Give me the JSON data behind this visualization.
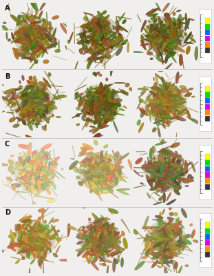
{
  "background_color": "#f0efed",
  "panel_bg": "#f4f3f1",
  "row_labels": [
    "A",
    "B",
    "C",
    "D"
  ],
  "n_cols": 3,
  "n_rows": 4,
  "label_fontsize": 7,
  "label_color": "#111111",
  "specimen_base_colors": [
    [
      "#7a6520",
      "#6e5c18",
      "#6a5818"
    ],
    [
      "#7a6520",
      "#6e5c18",
      "#8a7028"
    ],
    [
      "#c8b478",
      "#b89a58",
      "#7a6030"
    ],
    [
      "#a08030",
      "#907030",
      "#907838"
    ]
  ],
  "color_scale_colors": [
    "#ffff00",
    "#00dd00",
    "#0066ff",
    "#dd00dd",
    "#ff8800",
    "#333333"
  ],
  "row_divider_color": "#bbbbbb",
  "figsize": [
    3.11,
    4.0
  ],
  "dpi": 100
}
